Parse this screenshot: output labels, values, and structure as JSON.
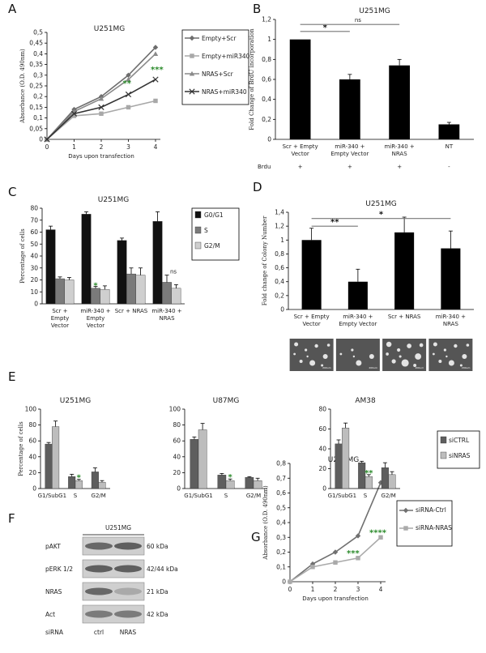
{
  "chart_data": [
    {
      "id": "A",
      "panel_label": "A",
      "type": "line",
      "title": "U251MG",
      "xlabel": "Days upon transfection",
      "ylabel": "Absorbance (O.D. 490nm)",
      "x": [
        0,
        1,
        2,
        3,
        4
      ],
      "ylim": [
        0,
        0.5
      ],
      "yticks": [
        "0",
        "0,05",
        "0,1",
        "0,15",
        "0,2",
        "0,25",
        "0,3",
        "0,35",
        "0,4",
        "0,45",
        "0,5"
      ],
      "series": [
        {
          "name": "Empty+Scr",
          "values": [
            0,
            0.14,
            0.2,
            0.3,
            0.43
          ],
          "color": "#6d6d6d",
          "marker": "diamond"
        },
        {
          "name": "Empty+miR340",
          "values": [
            0,
            0.11,
            0.12,
            0.15,
            0.18
          ],
          "color": "#a8a8a8",
          "marker": "square"
        },
        {
          "name": "NRAS+Scr",
          "values": [
            0,
            0.13,
            0.19,
            0.28,
            0.4
          ],
          "color": "#8a8a8a",
          "marker": "triangle"
        },
        {
          "name": "NRAS+miR340",
          "values": [
            0,
            0.12,
            0.15,
            0.21,
            0.28
          ],
          "color": "#333333",
          "marker": "x"
        }
      ],
      "annotations": [
        "***",
        "**"
      ]
    },
    {
      "id": "B",
      "panel_label": "B",
      "type": "bar",
      "title": "U251MG",
      "ylabel": "Fold Change of BrdU incorporation",
      "ylim": [
        0,
        1.2
      ],
      "yticks": [
        "0",
        "0,2",
        "0,4",
        "0,6",
        "0,8",
        "1",
        "1,2"
      ],
      "categories": [
        [
          "Scr + Empty",
          "Vector"
        ],
        [
          "miR-340 +",
          "Empty Vector"
        ],
        [
          "miR-340 +",
          "NRAS"
        ],
        [
          "NT"
        ]
      ],
      "values": [
        1.0,
        0.6,
        0.74,
        0.15
      ],
      "errors": [
        0.0,
        0.05,
        0.06,
        0.02
      ],
      "brdu_label": "Brdu",
      "brdu_marks": [
        "+",
        "+",
        "+",
        "-"
      ],
      "sig": [
        "*",
        "ns"
      ]
    },
    {
      "id": "C",
      "panel_label": "C",
      "type": "bar",
      "title": "U251MG",
      "ylabel": "Percentage of cells",
      "ylim": [
        0,
        80
      ],
      "yticks": [
        "0",
        "10",
        "20",
        "30",
        "40",
        "50",
        "60",
        "70",
        "80"
      ],
      "categories": [
        [
          "Scr +",
          "Empty",
          "Vector"
        ],
        [
          "miR-340 +",
          "Empty",
          "Vector"
        ],
        [
          "Scr + NRAS"
        ],
        [
          "miR-340 +",
          "NRAS"
        ]
      ],
      "series": [
        {
          "name": "G0/G1",
          "values": [
            62,
            75,
            53,
            69
          ],
          "errors": [
            3,
            2,
            2,
            8
          ],
          "color": "#111111"
        },
        {
          "name": "S",
          "values": [
            21,
            13,
            25,
            18
          ],
          "errors": [
            1.5,
            1.5,
            5,
            6
          ],
          "color": "#7a7a7a"
        },
        {
          "name": "G2/M",
          "values": [
            20,
            12,
            24,
            13
          ],
          "errors": [
            2,
            3,
            6,
            3
          ],
          "color": "#cfcfcf"
        }
      ],
      "annotations": [
        "*",
        "ns"
      ]
    },
    {
      "id": "D",
      "panel_label": "D",
      "type": "bar",
      "title": "U251MG",
      "ylabel": "Fold change of Colony Number",
      "ylim": [
        0,
        1.4
      ],
      "yticks": [
        "0",
        "0,2",
        "0,4",
        "0,6",
        "0,8",
        "1",
        "1,2",
        "1,4"
      ],
      "categories": [
        [
          "Scr + Empty",
          "Vector"
        ],
        [
          "miR-340 +",
          "Empty Vector"
        ],
        [
          "Scr + NRAS"
        ],
        [
          "miR-340 +",
          "NRAS"
        ]
      ],
      "values": [
        1.0,
        0.4,
        1.11,
        0.88
      ],
      "errors": [
        0.17,
        0.18,
        0.22,
        0.25
      ],
      "sig": [
        "**",
        "*"
      ],
      "image_scale_label": "200um"
    },
    {
      "id": "E1",
      "panel_label": "E",
      "type": "bar",
      "title": "U251MG",
      "ylabel": "Percentage of cells",
      "ylim": [
        0,
        100
      ],
      "yticks": [
        "0",
        "20",
        "40",
        "60",
        "80",
        "100"
      ],
      "categories": [
        "G1/SubG1",
        "S",
        "G2/M"
      ],
      "series": [
        {
          "name": "siCTRL",
          "values": [
            56,
            15,
            21
          ],
          "errors": [
            2,
            3,
            5
          ],
          "color": "#5e5e5e"
        },
        {
          "name": "siNRAS",
          "values": [
            78,
            10,
            8
          ],
          "errors": [
            7,
            1.5,
            2
          ],
          "color": "#bdbdbd"
        }
      ],
      "annotations": [
        "*"
      ]
    },
    {
      "id": "E2",
      "type": "bar",
      "title": "U87MG",
      "ylim": [
        0,
        100
      ],
      "yticks": [
        "0",
        "20",
        "40",
        "60",
        "80",
        "100"
      ],
      "categories": [
        "G1/SubG1",
        "S",
        "G2/M"
      ],
      "series": [
        {
          "name": "siCTRL",
          "values": [
            62,
            17,
            14
          ],
          "errors": [
            3,
            2,
            1
          ],
          "color": "#5e5e5e"
        },
        {
          "name": "siNRAS",
          "values": [
            74,
            10,
            10
          ],
          "errors": [
            8,
            2,
            3
          ],
          "color": "#bdbdbd"
        }
      ],
      "annotations": [
        "*"
      ]
    },
    {
      "id": "E3",
      "type": "bar",
      "title": "AM38",
      "ylim": [
        0,
        80
      ],
      "yticks": [
        "0",
        "20",
        "40",
        "60",
        "80"
      ],
      "categories": [
        "G1/SubG1",
        "S",
        "G2/M"
      ],
      "series": [
        {
          "name": "siCTRL",
          "values": [
            45,
            26,
            21
          ],
          "errors": [
            4,
            1.5,
            5
          ],
          "color": "#5e5e5e"
        },
        {
          "name": "siNRAS",
          "values": [
            61,
            12,
            14
          ],
          "errors": [
            5,
            2,
            3
          ],
          "color": "#bdbdbd"
        }
      ],
      "annotations": [
        "**"
      ],
      "legend": [
        "siCTRL",
        "siNRAS"
      ]
    },
    {
      "id": "G",
      "panel_label": "G",
      "type": "line",
      "title": "U251MG",
      "xlabel": "Days upon transfection",
      "ylabel": "Absorbance (O.D. 490nm)",
      "x": [
        0,
        1,
        2,
        3,
        4
      ],
      "ylim": [
        0,
        0.8
      ],
      "yticks": [
        "0",
        "0,1",
        "0,2",
        "0,3",
        "0,4",
        "0,5",
        "0,6",
        "0,7",
        "0,8"
      ],
      "series": [
        {
          "name": "siRNA-Ctrl",
          "values": [
            0,
            0.12,
            0.2,
            0.31,
            0.67
          ],
          "color": "#707070",
          "marker": "diamond"
        },
        {
          "name": "siRNA-NRAS",
          "values": [
            0,
            0.1,
            0.13,
            0.16,
            0.3
          ],
          "color": "#aaaaaa",
          "marker": "square"
        }
      ],
      "annotations": [
        "***",
        "****"
      ]
    }
  ],
  "western": {
    "panel_label": "F",
    "title": "U251MG",
    "rows": [
      {
        "name": "pAKT",
        "size": "60 kDa"
      },
      {
        "name": "pERK 1/2",
        "size": "42/44 kDa"
      },
      {
        "name": "NRAS",
        "size": "21 kDa"
      },
      {
        "name": "Act",
        "size": "42 kDa"
      }
    ],
    "sirna_label": "siRNA",
    "lanes": [
      "ctrl",
      "NRAS"
    ]
  }
}
